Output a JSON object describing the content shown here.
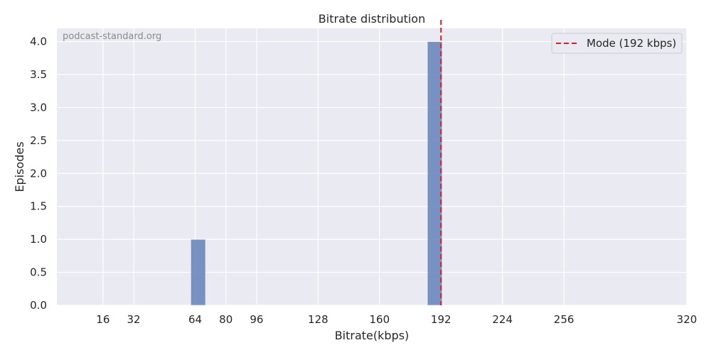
{
  "chart_data": {
    "type": "bar",
    "title": "Bitrate distribution",
    "xlabel": "Bitrate(kbps)",
    "ylabel": "Episodes",
    "watermark": "podcast-standard.org",
    "x_ticks": [
      16,
      32,
      64,
      80,
      96,
      128,
      160,
      192,
      224,
      256,
      320
    ],
    "xlim": [
      -8,
      320
    ],
    "ylim": [
      0,
      4.2
    ],
    "y_ticks": [
      "0.0",
      "0.5",
      "1.0",
      "1.5",
      "2.0",
      "2.5",
      "3.0",
      "3.5",
      "4.0"
    ],
    "bin_width": 7.7,
    "bars": [
      {
        "x_start": 61.7,
        "x_end": 69.4,
        "value": 1
      },
      {
        "x_start": 184.9,
        "x_end": 192.6,
        "value": 4
      }
    ],
    "mode_line": {
      "x": 192,
      "label": "Mode (192 kbps)",
      "color": "#e41a1c",
      "style": "dashed"
    },
    "legend": {
      "position": "top-right",
      "entries": [
        "Mode (192 kbps)"
      ]
    },
    "grid": true,
    "colors": {
      "bar": "#6a88bd",
      "background": "#eaeaf2",
      "grid": "#ffffff",
      "mode": "#e41a1c"
    }
  }
}
